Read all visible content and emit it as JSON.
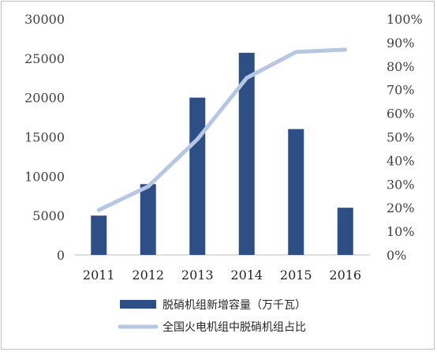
{
  "chart_data": {
    "type": "bar+line",
    "categories": [
      "2011",
      "2012",
      "2013",
      "2014",
      "2015",
      "2016"
    ],
    "series": [
      {
        "name": "脱硝机组新增容量（万千瓦）",
        "type": "bar",
        "axis": "left",
        "values": [
          5000,
          9000,
          20000,
          25700,
          16000,
          6000
        ],
        "color": "#2e4f86"
      },
      {
        "name": "全国火电机组中脱硝机组占比",
        "type": "line",
        "axis": "right",
        "values": [
          0.19,
          0.29,
          0.49,
          0.75,
          0.86,
          0.87
        ],
        "color": "#b5c7e3"
      }
    ],
    "y_left": {
      "min": 0,
      "max": 30000,
      "ticks": [
        "0",
        "5000",
        "10000",
        "15000",
        "20000",
        "25000",
        "30000"
      ]
    },
    "y_right": {
      "min": 0,
      "max": 1,
      "ticks": [
        "0%",
        "10%",
        "20%",
        "30%",
        "40%",
        "50%",
        "60%",
        "70%",
        "80%",
        "90%",
        "100%"
      ]
    },
    "grid": false,
    "legend_position": "bottom"
  }
}
